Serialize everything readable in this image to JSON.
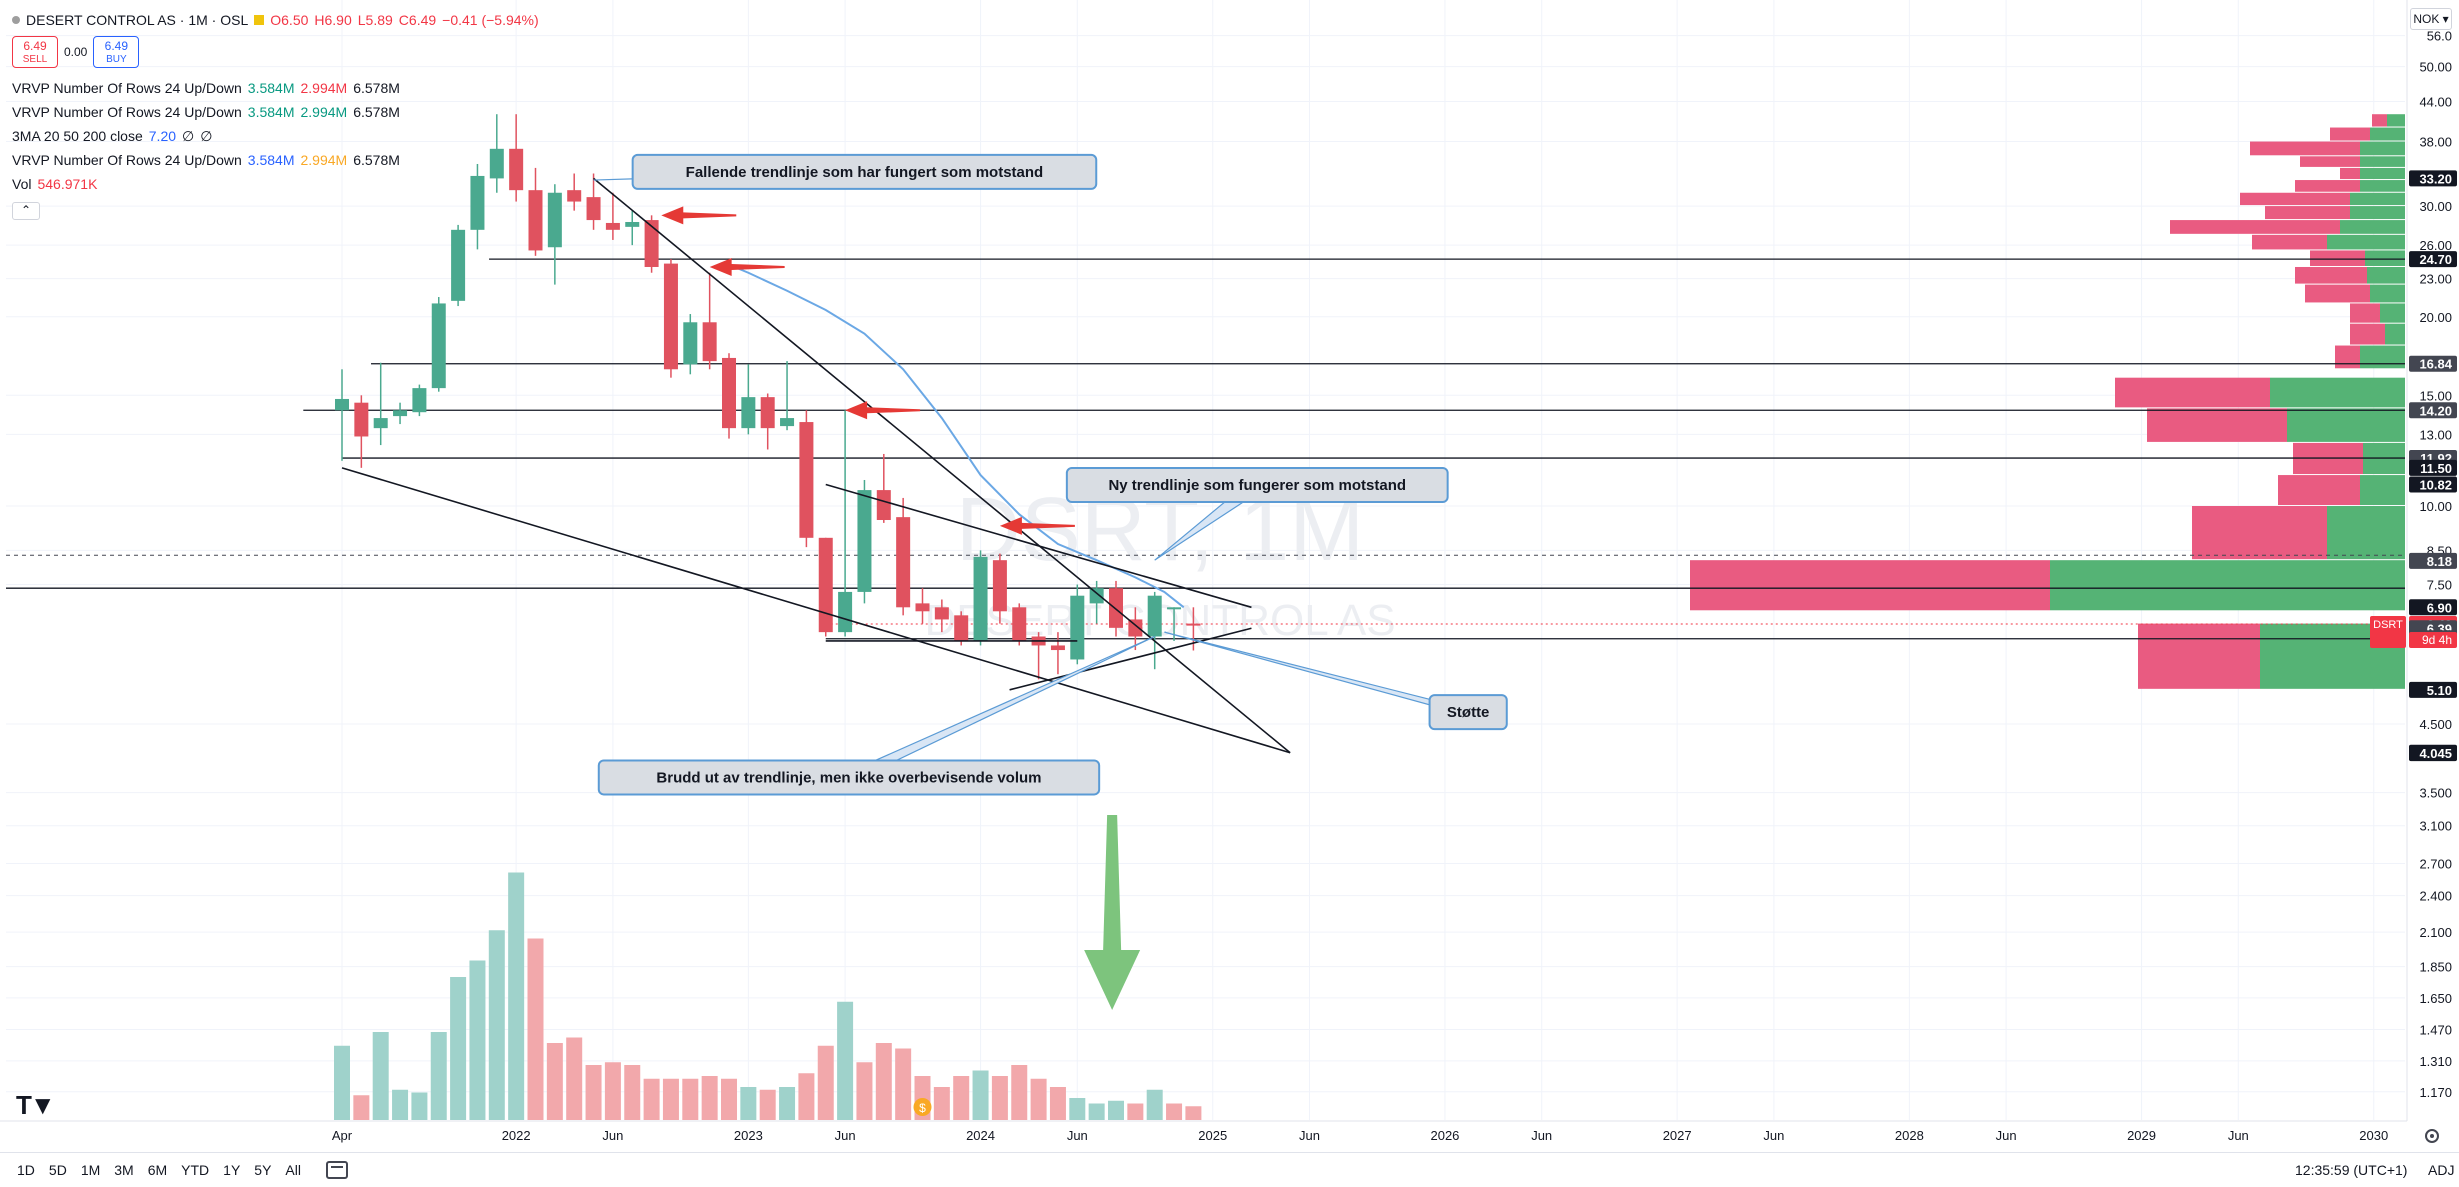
{
  "symbol": {
    "name": "DESERT CONTROL AS · 1M · OSL",
    "open": "O6.50",
    "high": "H6.90",
    "low": "L5.89",
    "close": "C6.49",
    "change": "−0.41 (−5.94%)",
    "sell_price": "6.49",
    "sell_label": "SELL",
    "spread": "0.00",
    "buy_price": "6.49",
    "buy_label": "BUY"
  },
  "indicators": [
    {
      "name": "VRVP Number Of Rows 24 Up/Down",
      "up": "3.584M",
      "down": "2.994M",
      "total": "6.578M",
      "up_color": "green",
      "down_color": "red"
    },
    {
      "name": "VRVP Number Of Rows 24 Up/Down",
      "up": "3.584M",
      "down": "2.994M",
      "total": "6.578M",
      "up_color": "green",
      "down_color": "green"
    },
    {
      "name": "3MA 20 50 200 close",
      "up": "7.20",
      "down": "∅",
      "total": "∅",
      "up_color": "blue",
      "down_color": "dark"
    },
    {
      "name": "VRVP Number Of Rows 24 Up/Down",
      "up": "3.584M",
      "down": "2.994M",
      "total": "6.578M",
      "up_color": "blue",
      "down_color": "orange"
    }
  ],
  "volume_label": "Vol",
  "volume_value": "546.971K",
  "currency": "NOK",
  "watermark": {
    "ticker": "DSRT, 1M",
    "company": "DESERT CONTROL AS"
  },
  "colors": {
    "up": "#4aa98f",
    "down": "#e0525f",
    "vol_up": "#9fd2cb",
    "vol_down": "#f2a8ab",
    "ma": "#6ba8e5",
    "arrow": "#e53935",
    "green_arrow": "#7dc47d",
    "vp_up": "#4caf6e",
    "vp_down": "#e8527a"
  },
  "bottom": {
    "ranges": [
      "1D",
      "5D",
      "1M",
      "3M",
      "6M",
      "YTD",
      "1Y",
      "5Y",
      "All"
    ],
    "clock": "12:35:59 (UTC+1)",
    "adj": "ADJ"
  },
  "chart_data": {
    "type": "candlestick",
    "scale": "log",
    "interval": "1M",
    "price_axis_ticks": [
      56.0,
      50.0,
      44.0,
      38.0,
      30.0,
      26.0,
      23.0,
      20.0,
      15.0,
      13.0,
      10.0,
      8.5,
      7.5,
      4.5,
      3.5,
      3.1,
      2.7,
      2.4,
      2.1,
      1.85,
      1.65,
      1.47,
      1.31,
      1.17
    ],
    "price_axis_tick_labels": [
      "56.0",
      "50.00",
      "44.00",
      "38.00",
      "30.00",
      "26.00",
      "23.00",
      "20.00",
      "15.00",
      "13.00",
      "10.00",
      "8.50",
      "7.50",
      "4.500",
      "3.500",
      "3.100",
      "2.700",
      "2.400",
      "2.100",
      "1.850",
      "1.650",
      "1.470",
      "1.310",
      "1.170"
    ],
    "price_labels": [
      {
        "text": "33.20",
        "value": 33.2,
        "bg": "#131722"
      },
      {
        "text": "24.70",
        "value": 24.7,
        "bg": "#131722"
      },
      {
        "text": "16.84",
        "value": 16.84,
        "bg": "#434651"
      },
      {
        "text": "14.20",
        "value": 14.2,
        "bg": "#434651"
      },
      {
        "text": "11.92",
        "value": 11.92,
        "bg": "#434651"
      },
      {
        "text": "11.50",
        "value": 11.5,
        "bg": "#131722"
      },
      {
        "text": "10.82",
        "value": 10.82,
        "bg": "#131722"
      },
      {
        "text": "8.18",
        "value": 8.18,
        "bg": "#434651"
      },
      {
        "text": "6.90",
        "value": 6.9,
        "bg": "#131722"
      },
      {
        "text": "6.49",
        "value": 6.49,
        "bg": "#f23645"
      },
      {
        "text": "6.39",
        "value": 6.39,
        "bg": "#434651"
      },
      {
        "text": "6.16",
        "value": 6.16,
        "bg": "#434651"
      },
      {
        "text": "5.10",
        "value": 5.1,
        "bg": "#131722"
      },
      {
        "text": "4.050",
        "value": 4.05,
        "bg": "#131722"
      },
      {
        "text": "4.045",
        "value": 4.045,
        "bg": "#131722"
      }
    ],
    "last_price_tag": {
      "ticker": "DSRT",
      "countdown": "9d 4h"
    },
    "time_axis_ticks": [
      {
        "label": "Apr",
        "month": 15
      },
      {
        "label": "2022",
        "month": 24
      },
      {
        "label": "Jun",
        "month": 29
      },
      {
        "label": "2023",
        "month": 36
      },
      {
        "label": "Jun",
        "month": 41
      },
      {
        "label": "2024",
        "month": 48
      },
      {
        "label": "Jun",
        "month": 53
      },
      {
        "label": "2025",
        "month": 60
      },
      {
        "label": "Jun",
        "month": 65
      },
      {
        "label": "2026",
        "month": 72
      },
      {
        "label": "Jun",
        "month": 77
      },
      {
        "label": "2027",
        "month": 84
      },
      {
        "label": "Jun",
        "month": 89
      },
      {
        "label": "2028",
        "month": 96
      },
      {
        "label": "Jun",
        "month": 101
      },
      {
        "label": "2029",
        "month": 108
      },
      {
        "label": "Jun",
        "month": 113
      },
      {
        "label": "2030",
        "month": 120
      }
    ],
    "candles": [
      {
        "m": 15,
        "o": 14.2,
        "h": 16.5,
        "l": 11.8,
        "c": 14.8
      },
      {
        "m": 16,
        "o": 14.6,
        "h": 15.0,
        "l": 11.5,
        "c": 12.9
      },
      {
        "m": 17,
        "o": 13.3,
        "h": 16.9,
        "l": 12.5,
        "c": 13.8
      },
      {
        "m": 18,
        "o": 13.9,
        "h": 14.6,
        "l": 13.5,
        "c": 14.2
      },
      {
        "m": 19,
        "o": 14.1,
        "h": 15.6,
        "l": 13.9,
        "c": 15.4
      },
      {
        "m": 20,
        "o": 15.4,
        "h": 21.5,
        "l": 15.2,
        "c": 21.0
      },
      {
        "m": 21,
        "o": 21.2,
        "h": 28.0,
        "l": 20.8,
        "c": 27.5
      },
      {
        "m": 22,
        "o": 27.5,
        "h": 35.0,
        "l": 25.6,
        "c": 33.5
      },
      {
        "m": 23,
        "o": 33.2,
        "h": 42.0,
        "l": 31.5,
        "c": 37.0
      },
      {
        "m": 24,
        "o": 37.0,
        "h": 42.0,
        "l": 30.5,
        "c": 31.8
      },
      {
        "m": 25,
        "o": 31.8,
        "h": 34.5,
        "l": 25.0,
        "c": 25.5
      },
      {
        "m": 26,
        "o": 25.8,
        "h": 32.5,
        "l": 22.5,
        "c": 31.5
      },
      {
        "m": 27,
        "o": 31.8,
        "h": 33.8,
        "l": 29.5,
        "c": 30.5
      },
      {
        "m": 28,
        "o": 31.0,
        "h": 33.8,
        "l": 27.5,
        "c": 28.5
      },
      {
        "m": 29,
        "o": 28.2,
        "h": 31.5,
        "l": 26.5,
        "c": 27.5
      },
      {
        "m": 30,
        "o": 27.8,
        "h": 29.5,
        "l": 26.0,
        "c": 28.3
      },
      {
        "m": 31,
        "o": 28.5,
        "h": 29.0,
        "l": 23.5,
        "c": 24.0
      },
      {
        "m": 32,
        "o": 24.3,
        "h": 24.7,
        "l": 16.0,
        "c": 16.5
      },
      {
        "m": 33,
        "o": 16.8,
        "h": 20.2,
        "l": 16.2,
        "c": 19.6
      },
      {
        "m": 34,
        "o": 19.6,
        "h": 23.5,
        "l": 16.5,
        "c": 17.0
      },
      {
        "m": 35,
        "o": 17.2,
        "h": 17.5,
        "l": 12.8,
        "c": 13.3
      },
      {
        "m": 36,
        "o": 13.3,
        "h": 16.8,
        "l": 13.0,
        "c": 14.9
      },
      {
        "m": 37,
        "o": 14.9,
        "h": 15.1,
        "l": 12.3,
        "c": 13.3
      },
      {
        "m": 38,
        "o": 13.4,
        "h": 17.0,
        "l": 13.2,
        "c": 13.8
      },
      {
        "m": 39,
        "o": 13.6,
        "h": 14.2,
        "l": 8.6,
        "c": 8.9
      },
      {
        "m": 40,
        "o": 8.9,
        "h": 8.9,
        "l": 6.2,
        "c": 6.3
      },
      {
        "m": 41,
        "o": 6.3,
        "h": 14.2,
        "l": 6.2,
        "c": 7.3
      },
      {
        "m": 42,
        "o": 7.3,
        "h": 11.0,
        "l": 7.0,
        "c": 10.6
      },
      {
        "m": 43,
        "o": 10.6,
        "h": 12.1,
        "l": 9.4,
        "c": 9.5
      },
      {
        "m": 44,
        "o": 9.6,
        "h": 10.3,
        "l": 6.7,
        "c": 6.9
      },
      {
        "m": 45,
        "o": 7.0,
        "h": 7.4,
        "l": 6.5,
        "c": 6.8
      },
      {
        "m": 46,
        "o": 6.9,
        "h": 7.1,
        "l": 6.3,
        "c": 6.6
      },
      {
        "m": 47,
        "o": 6.7,
        "h": 6.8,
        "l": 6.0,
        "c": 6.1
      },
      {
        "m": 48,
        "o": 6.1,
        "h": 8.5,
        "l": 6.0,
        "c": 8.3
      },
      {
        "m": 49,
        "o": 8.2,
        "h": 8.4,
        "l": 6.5,
        "c": 6.8
      },
      {
        "m": 50,
        "o": 6.9,
        "h": 7.0,
        "l": 6.0,
        "c": 6.1
      },
      {
        "m": 51,
        "o": 6.2,
        "h": 6.3,
        "l": 5.3,
        "c": 6.0
      },
      {
        "m": 52,
        "o": 6.0,
        "h": 6.3,
        "l": 5.4,
        "c": 5.9
      },
      {
        "m": 53,
        "o": 5.7,
        "h": 7.5,
        "l": 5.6,
        "c": 7.2
      },
      {
        "m": 54,
        "o": 7.0,
        "h": 7.6,
        "l": 6.5,
        "c": 7.4
      },
      {
        "m": 55,
        "o": 7.4,
        "h": 7.6,
        "l": 6.2,
        "c": 6.4
      },
      {
        "m": 56,
        "o": 6.6,
        "h": 6.9,
        "l": 5.9,
        "c": 6.2
      },
      {
        "m": 57,
        "o": 6.2,
        "h": 7.3,
        "l": 5.5,
        "c": 7.2
      },
      {
        "m": 58,
        "o": 6.9,
        "h": 6.9,
        "l": 6.1,
        "c": 6.9
      },
      {
        "m": 59,
        "o": 6.5,
        "h": 6.9,
        "l": 5.89,
        "c": 6.49
      }
    ],
    "volume": [
      {
        "m": 15,
        "v": 1.35,
        "up": true
      },
      {
        "m": 16,
        "v": 0.45,
        "up": false
      },
      {
        "m": 17,
        "v": 1.6,
        "up": true
      },
      {
        "m": 18,
        "v": 0.55,
        "up": true
      },
      {
        "m": 19,
        "v": 0.5,
        "up": true
      },
      {
        "m": 20,
        "v": 1.6,
        "up": true
      },
      {
        "m": 21,
        "v": 2.6,
        "up": true
      },
      {
        "m": 22,
        "v": 2.9,
        "up": true
      },
      {
        "m": 23,
        "v": 3.45,
        "up": true
      },
      {
        "m": 24,
        "v": 4.5,
        "up": true
      },
      {
        "m": 25,
        "v": 3.3,
        "up": false
      },
      {
        "m": 26,
        "v": 1.4,
        "up": false
      },
      {
        "m": 27,
        "v": 1.5,
        "up": false
      },
      {
        "m": 28,
        "v": 1.0,
        "up": false
      },
      {
        "m": 29,
        "v": 1.05,
        "up": false
      },
      {
        "m": 30,
        "v": 1.0,
        "up": false
      },
      {
        "m": 31,
        "v": 0.75,
        "up": false
      },
      {
        "m": 32,
        "v": 0.75,
        "up": false
      },
      {
        "m": 33,
        "v": 0.75,
        "up": false
      },
      {
        "m": 34,
        "v": 0.8,
        "up": false
      },
      {
        "m": 35,
        "v": 0.75,
        "up": false
      },
      {
        "m": 36,
        "v": 0.6,
        "up": true
      },
      {
        "m": 37,
        "v": 0.55,
        "up": false
      },
      {
        "m": 38,
        "v": 0.6,
        "up": true
      },
      {
        "m": 39,
        "v": 0.85,
        "up": false
      },
      {
        "m": 40,
        "v": 1.35,
        "up": false
      },
      {
        "m": 41,
        "v": 2.15,
        "up": true
      },
      {
        "m": 42,
        "v": 1.05,
        "up": false
      },
      {
        "m": 43,
        "v": 1.4,
        "up": false
      },
      {
        "m": 44,
        "v": 1.3,
        "up": false
      },
      {
        "m": 45,
        "v": 0.8,
        "up": false
      },
      {
        "m": 46,
        "v": 0.6,
        "up": false
      },
      {
        "m": 47,
        "v": 0.8,
        "up": false
      },
      {
        "m": 48,
        "v": 0.9,
        "up": true
      },
      {
        "m": 49,
        "v": 0.8,
        "up": false
      },
      {
        "m": 50,
        "v": 1.0,
        "up": false
      },
      {
        "m": 51,
        "v": 0.75,
        "up": false
      },
      {
        "m": 52,
        "v": 0.6,
        "up": false
      },
      {
        "m": 53,
        "v": 0.4,
        "up": true
      },
      {
        "m": 54,
        "v": 0.3,
        "up": true
      },
      {
        "m": 55,
        "v": 0.35,
        "up": true
      },
      {
        "m": 56,
        "v": 0.3,
        "up": false
      },
      {
        "m": 57,
        "v": 0.55,
        "up": true
      },
      {
        "m": 58,
        "v": 0.3,
        "up": false
      },
      {
        "m": 59,
        "v": 0.25,
        "up": false
      }
    ],
    "volume_max": 6.0,
    "ma_line": [
      {
        "m": 35.0,
        "p": 24.2
      },
      {
        "m": 36.0,
        "p": 23.5
      },
      {
        "m": 38.0,
        "p": 22.0
      },
      {
        "m": 40.0,
        "p": 20.5
      },
      {
        "m": 42.0,
        "p": 18.8
      },
      {
        "m": 44.0,
        "p": 16.5
      },
      {
        "m": 46.0,
        "p": 13.8
      },
      {
        "m": 48.0,
        "p": 11.2
      },
      {
        "m": 50.0,
        "p": 9.7
      },
      {
        "m": 52.0,
        "p": 8.7
      },
      {
        "m": 54.0,
        "p": 8.2
      },
      {
        "m": 56.0,
        "p": 7.7
      },
      {
        "m": 57.5,
        "p": 7.3
      },
      {
        "m": 58.5,
        "p": 6.9
      }
    ],
    "volume_profile": [
      {
        "p1": 42.0,
        "p2": 40.0,
        "up": 18,
        "down": 15
      },
      {
        "p1": 40.0,
        "p2": 38.0,
        "up": 35,
        "down": 40
      },
      {
        "p1": 38.0,
        "p2": 36.0,
        "up": 45,
        "down": 110
      },
      {
        "p1": 36.0,
        "p2": 34.5,
        "up": 45,
        "down": 60
      },
      {
        "p1": 34.5,
        "p2": 33.0,
        "up": 45,
        "down": 20
      },
      {
        "p1": 33.0,
        "p2": 31.5,
        "up": 45,
        "down": 65
      },
      {
        "p1": 31.5,
        "p2": 30.0,
        "up": 55,
        "down": 110
      },
      {
        "p1": 30.0,
        "p2": 28.5,
        "up": 55,
        "down": 85
      },
      {
        "p1": 28.5,
        "p2": 27.0,
        "up": 65,
        "down": 170
      },
      {
        "p1": 27.0,
        "p2": 25.5,
        "up": 78,
        "down": 75
      },
      {
        "p1": 25.5,
        "p2": 24.0,
        "up": 40,
        "down": 55
      },
      {
        "p1": 24.0,
        "p2": 22.5,
        "up": 38,
        "down": 72
      },
      {
        "p1": 22.5,
        "p2": 21.0,
        "up": 35,
        "down": 65
      },
      {
        "p1": 21.0,
        "p2": 19.5,
        "up": 25,
        "down": 30
      },
      {
        "p1": 19.5,
        "p2": 18.0,
        "up": 20,
        "down": 35
      },
      {
        "p1": 18.0,
        "p2": 16.5,
        "up": 45,
        "down": 25
      },
      {
        "p1": 16.0,
        "p2": 14.3,
        "up": 135,
        "down": 155
      },
      {
        "p1": 14.3,
        "p2": 12.6,
        "up": 118,
        "down": 140
      },
      {
        "p1": 12.6,
        "p2": 11.2,
        "up": 42,
        "down": 70
      },
      {
        "p1": 11.2,
        "p2": 10.0,
        "up": 45,
        "down": 82
      },
      {
        "p1": 10.0,
        "p2": 8.2,
        "up": 78,
        "down": 135
      },
      {
        "p1": 8.2,
        "p2": 6.8,
        "up": 355,
        "down": 360
      },
      {
        "p1": 6.5,
        "p2": 5.1,
        "up": 145,
        "down": 122
      }
    ],
    "horizontal_lines": [
      {
        "value": 24.7,
        "m1": 22.6,
        "m2": 130
      },
      {
        "value": 16.84,
        "m1": 16.5,
        "m2": 130
      },
      {
        "value": 14.2,
        "m1": 13.0,
        "m2": 130
      },
      {
        "value": 11.92,
        "m1": 15.0,
        "m2": 130
      },
      {
        "value": 7.4,
        "m1": -15,
        "m2": 130
      },
      {
        "value": 6.15,
        "m1": 40.0,
        "m2": 130
      }
    ],
    "dashed_lines": [
      {
        "value": 8.35,
        "m1": -15,
        "m2": 130
      }
    ],
    "trend_lines": [
      {
        "m1": 28.0,
        "p1": 33.2,
        "m2": 64.0,
        "p2": 4.05
      },
      {
        "m1": 15.0,
        "p1": 11.5,
        "m2": 64.0,
        "p2": 4.05
      },
      {
        "m1": 40.0,
        "p1": 10.82,
        "m2": 62.0,
        "p2": 6.9
      },
      {
        "m1": 49.5,
        "p1": 5.1,
        "m2": 62.0,
        "p2": 6.39
      },
      {
        "m1": 40.0,
        "p1": 6.1,
        "m2": 53.0,
        "p2": 6.1
      }
    ],
    "red_arrows": [
      {
        "m": 31.5,
        "p": 29.0
      },
      {
        "m": 34.0,
        "p": 24.0
      },
      {
        "m": 41.0,
        "p": 14.2
      },
      {
        "m": 49.0,
        "p": 9.3
      }
    ],
    "callouts": [
      {
        "text": "Fallende trendlinje som har fungert som motstand",
        "box_m": 42.0,
        "box_p": 34.0,
        "tip_m": 28.0,
        "tip_p": 33.0
      },
      {
        "text": "Ny trendlinje som fungerer som motstand",
        "box_m": 62.3,
        "box_p": 10.8,
        "tip_m": 57.0,
        "tip_p": 8.2
      },
      {
        "text": "Støtte",
        "box_m": 73.2,
        "box_p": 4.7,
        "tip_m": 57.5,
        "tip_p": 6.3
      },
      {
        "text": "Brudd ut av trendlinje, men ikke overbevisende volum",
        "box_m": 41.2,
        "box_p": 3.7,
        "tip_m": 57.0,
        "tip_p": 6.2
      }
    ],
    "green_arrow": {
      "m": 54.8
    }
  }
}
